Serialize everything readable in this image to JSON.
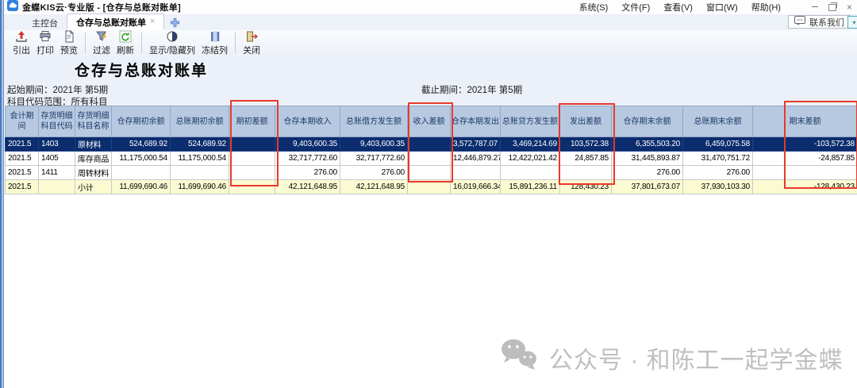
{
  "window": {
    "title": "金蝶KIS云·专业版 - [仓存与总账对账单]",
    "menu": [
      "系统(S)",
      "文件(F)",
      "查看(V)",
      "窗口(W)",
      "帮助(H)"
    ],
    "controls": {
      "close": "×"
    }
  },
  "tabs": [
    {
      "label": "主控台"
    },
    {
      "label": "仓存与总账对账单",
      "active": true
    }
  ],
  "glyphs": {
    "close": "×",
    "chevron": "▾"
  },
  "contact": {
    "label": "联系我们"
  },
  "toolbar": {
    "buttons": [
      {
        "label": "引出",
        "icon": "export-icon"
      },
      {
        "label": "打印",
        "icon": "print-icon"
      },
      {
        "label": "预览",
        "icon": "preview-icon"
      },
      {
        "label": "过滤",
        "icon": "filter-icon"
      },
      {
        "label": "刷新",
        "icon": "refresh-icon"
      },
      {
        "label": "显示/隐藏列",
        "icon": "show-hide-columns-icon"
      },
      {
        "label": "冻结列",
        "icon": "freeze-columns-icon"
      },
      {
        "label": "关闭",
        "icon": "close-icon"
      }
    ]
  },
  "report": {
    "title": "仓存与总账对账单",
    "start_label": "起始期间：",
    "start_value": "2021年 第5期",
    "end_label": "截止期间：",
    "end_value": "2021年 第5期",
    "range_label": "科目代码范围：",
    "range_value": "所有科目"
  },
  "table": {
    "headers": [
      "会计期间",
      "存货明细科目代码",
      "存货明细科目名称",
      "仓存期初余额",
      "总账期初余额",
      "期初差额",
      "仓存本期收入",
      "总账借方发生额",
      "收入差额",
      "仓存本期发出",
      "总账贷方发生额",
      "发出差额",
      "仓存期末余额",
      "总账期末余额",
      "期末差额"
    ],
    "rows": [
      {
        "style": "selected",
        "cells": [
          "2021.5",
          "1403",
          "原材料",
          "524,689.92",
          "524,689.92",
          "",
          "9,403,600.35",
          "9,403,600.35",
          "",
          "3,572,787.07",
          "3,469,214.69",
          "103,572.38",
          "6,355,503.20",
          "6,459,075.58",
          "-103,572.38"
        ]
      },
      {
        "style": "",
        "cells": [
          "2021.5",
          "1405",
          "库存商品",
          "11,175,000.54",
          "11,175,000.54",
          "",
          "32,717,772.60",
          "32,717,772.60",
          "",
          "12,446,879.27",
          "12,422,021.42",
          "24,857.85",
          "31,445,893.87",
          "31,470,751.72",
          "-24,857.85"
        ]
      },
      {
        "style": "",
        "cells": [
          "2021.5",
          "1411",
          "周转材料",
          "",
          "",
          "",
          "276.00",
          "276.00",
          "",
          "",
          "",
          "",
          "276.00",
          "276.00",
          ""
        ]
      },
      {
        "style": "subtotal",
        "cells": [
          "2021.5",
          "",
          "小计",
          "11,699,690.46",
          "11,699,690.46",
          "",
          "42,121,648.95",
          "42,121,648.95",
          "",
          "16,019,666.34",
          "15,891,236.11",
          "128,430.23",
          "37,801,673.07",
          "37,930,103.30",
          "-128,430.23"
        ]
      }
    ],
    "highlighted_columns": [
      "期初差额",
      "收入差额",
      "发出差额",
      "期末差额"
    ],
    "highlight_color": "#e8392b"
  },
  "colors": {
    "header_bg": "#b7c9e1",
    "selected_row_bg": "#0b2d6e",
    "subtotal_bg": "#fbfbd2",
    "annotation_red": "#e8392b"
  },
  "watermark": {
    "text": "公众号 · 和陈工一起学金蝶"
  }
}
